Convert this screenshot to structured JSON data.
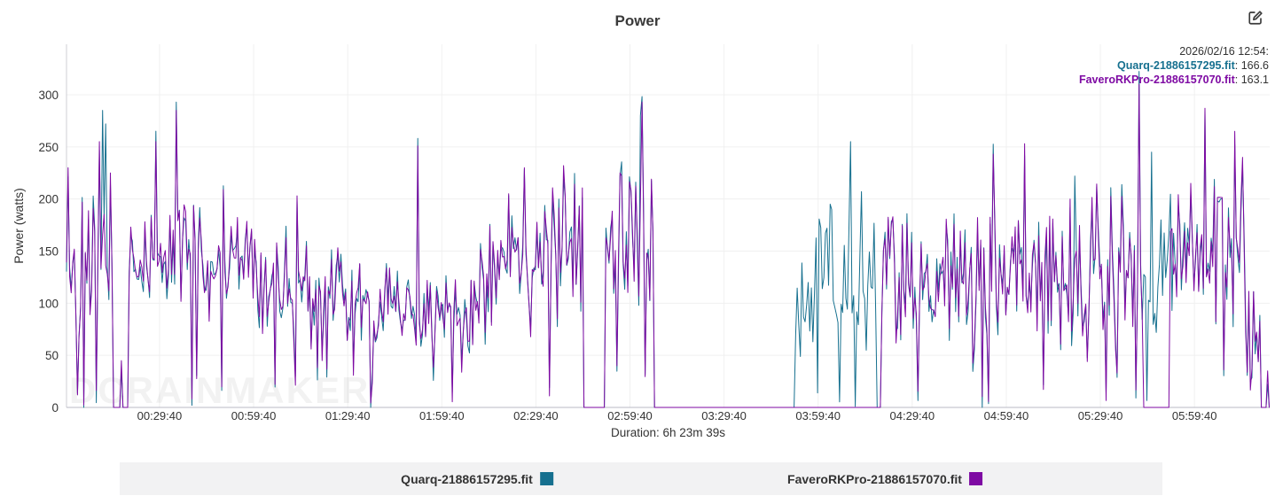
{
  "header": {
    "title": "Power"
  },
  "tooltip": {
    "date_line": "2026/02/16 12:54:",
    "series": [
      {
        "name": "Quarq-21886157295.fit",
        "value_display": ": 166.6",
        "color": "#16708f"
      },
      {
        "name": "FaveroRKPro-21886157070.fit",
        "value_display": ": 163.1",
        "color": "#7e0aa3"
      }
    ]
  },
  "axes": {
    "y_label": "Power (watts)",
    "x_label": "Duration: 6h 23m 39s",
    "y_ticks": [
      0,
      50,
      100,
      150,
      200,
      250,
      300
    ]
  },
  "legend": {
    "items": [
      {
        "label": "Quarq-21886157295.fit",
        "color": "#16708f"
      },
      {
        "label": "FaveroRKPro-21886157070.fit",
        "color": "#7e0aa3"
      }
    ]
  },
  "watermark": "DCRAINMAKER",
  "chart_data": {
    "type": "line",
    "title": "Power",
    "xlabel": "Duration: 6h 23m 39s",
    "ylabel": "Power (watts)",
    "x_unit": "seconds",
    "duration_seconds": 23019,
    "ylim": [
      0,
      347
    ],
    "grid": true,
    "x_ticks": [
      {
        "t": 1780,
        "label": "00:29:40"
      },
      {
        "t": 3580,
        "label": "00:59:40"
      },
      {
        "t": 5380,
        "label": "01:29:40"
      },
      {
        "t": 7180,
        "label": "01:59:40"
      },
      {
        "t": 8980,
        "label": "02:29:40"
      },
      {
        "t": 10780,
        "label": "02:59:40"
      },
      {
        "t": 12580,
        "label": "03:29:40"
      },
      {
        "t": 14380,
        "label": "03:59:40"
      },
      {
        "t": 16180,
        "label": "04:29:40"
      },
      {
        "t": 17980,
        "label": "04:59:40"
      },
      {
        "t": 19780,
        "label": "05:29:40"
      },
      {
        "t": 21580,
        "label": "05:59:40"
      }
    ],
    "sample_step_seconds": 30,
    "series": [
      {
        "name": "Quarq-21886157295.fit",
        "color": "#16708f",
        "mode": "mirror_with_jitter",
        "jitter_watts": 14,
        "own_segments": [
          [
            13950,
            15500,
            20,
            210
          ],
          [
            20600,
            21200,
            30,
            220
          ]
        ],
        "spikes": [
          [
            678,
            285
          ],
          [
            763,
            272
          ],
          [
            2090,
            293
          ],
          [
            10990,
            280
          ],
          [
            14600,
            195
          ],
          [
            15000,
            255
          ],
          [
            15200,
            207
          ],
          [
            19290,
            222
          ],
          [
            20750,
            245
          ],
          [
            20950,
            180
          ]
        ]
      },
      {
        "name": "FaveroRKPro-21886157070.fit",
        "color": "#7e0aa3",
        "mode": "segments",
        "segments": [
          [
            0,
            900,
            45,
            225
          ],
          [
            900,
            1200,
            0,
            0
          ],
          [
            1200,
            1680,
            80,
            190
          ],
          [
            1680,
            2600,
            95,
            205
          ],
          [
            2600,
            3700,
            75,
            185
          ],
          [
            3700,
            5200,
            65,
            165
          ],
          [
            5200,
            6600,
            45,
            140
          ],
          [
            6600,
            7900,
            45,
            130
          ],
          [
            7900,
            9300,
            85,
            200
          ],
          [
            9300,
            9900,
            60,
            220
          ],
          [
            9900,
            10300,
            0,
            0
          ],
          [
            10300,
            11250,
            80,
            225
          ],
          [
            11250,
            15600,
            0,
            0
          ],
          [
            15600,
            16100,
            55,
            185
          ],
          [
            16100,
            18500,
            55,
            190
          ],
          [
            18500,
            19600,
            50,
            185
          ],
          [
            19600,
            20600,
            60,
            215
          ],
          [
            20600,
            21100,
            0,
            0
          ],
          [
            21100,
            22550,
            65,
            215
          ],
          [
            22550,
            22860,
            25,
            115
          ],
          [
            22860,
            23020,
            0,
            0
          ]
        ],
        "spikes": [
          [
            34,
            230
          ],
          [
            288,
            197
          ],
          [
            644,
            255
          ],
          [
            831,
            225
          ],
          [
            1050,
            45
          ],
          [
            1713,
            255
          ],
          [
            2090,
            285
          ],
          [
            3000,
            209
          ],
          [
            4400,
            203
          ],
          [
            6733,
            251
          ],
          [
            8450,
            205
          ],
          [
            8750,
            230
          ],
          [
            9500,
            232
          ],
          [
            10600,
            225
          ],
          [
            11000,
            293
          ],
          [
            15800,
            183
          ],
          [
            17730,
            243
          ],
          [
            18320,
            253
          ],
          [
            19200,
            200
          ],
          [
            20520,
            310
          ],
          [
            21500,
            215
          ],
          [
            21790,
            287
          ],
          [
            22350,
            265
          ],
          [
            22500,
            240
          ],
          [
            22980,
            35
          ]
        ]
      }
    ]
  }
}
